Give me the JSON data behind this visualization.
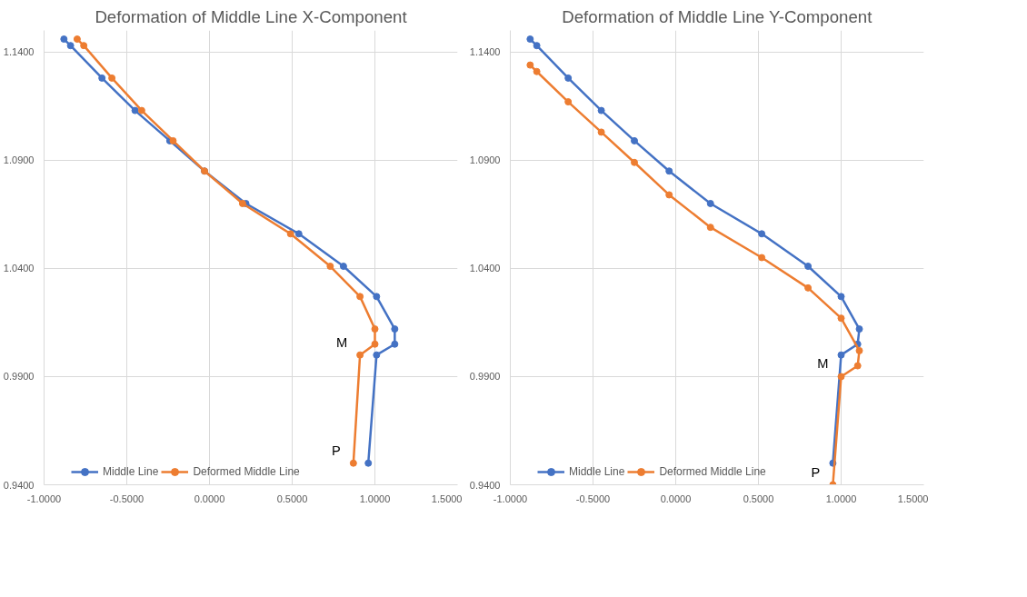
{
  "chart_data": [
    {
      "type": "line",
      "title": "Deformation of Middle Line X-Component",
      "xlim": [
        -1,
        1.5
      ],
      "ylim": [
        0.94,
        1.15
      ],
      "xticks": [
        {
          "value": -1,
          "label": "-1.0000"
        },
        {
          "value": -0.5,
          "label": "-0.5000"
        },
        {
          "value": 0,
          "label": "0.0000"
        },
        {
          "value": 0.5,
          "label": "0.5000"
        },
        {
          "value": 1,
          "label": "1.0000"
        },
        {
          "value": 1.5,
          "label": "1.5000"
        }
      ],
      "yticks": [
        {
          "value": 0.94,
          "label": "0.9400"
        },
        {
          "value": 0.99,
          "label": "0.9900"
        },
        {
          "value": 1.04,
          "label": "1.0400"
        },
        {
          "value": 1.09,
          "label": "1.0900"
        },
        {
          "value": 1.14,
          "label": "1.1400"
        }
      ],
      "grid": true,
      "legend": "bottom",
      "marker": "circle",
      "line_style": "solid",
      "series": [
        {
          "name": "Middle Line",
          "color": "#4472c4",
          "x": [
            -0.88,
            -0.84,
            -0.65,
            -0.45,
            -0.24,
            -0.03,
            0.22,
            0.54,
            0.81,
            1.01,
            1.12,
            1.12,
            1.01,
            0.96
          ],
          "values": [
            1.146,
            1.143,
            1.128,
            1.113,
            1.099,
            1.085,
            1.07,
            1.056,
            1.041,
            1.027,
            1.012,
            1.005,
            1.0,
            0.95
          ]
        },
        {
          "name": "Deformed Middle Line",
          "color": "#ed7d31",
          "x": [
            -0.8,
            -0.76,
            -0.59,
            -0.41,
            -0.22,
            -0.03,
            0.2,
            0.49,
            0.73,
            0.91,
            1.0,
            1.0,
            0.91,
            0.87
          ],
          "values": [
            1.146,
            1.143,
            1.128,
            1.113,
            1.099,
            1.085,
            1.07,
            1.056,
            1.041,
            1.027,
            1.012,
            1.005,
            1.0,
            0.95
          ]
        }
      ],
      "annotations": [
        {
          "text": "M",
          "x": 0.91,
          "y": 1.0
        },
        {
          "text": "P",
          "x": 0.87,
          "y": 0.95
        }
      ]
    },
    {
      "type": "line",
      "title": "Deformation of Middle Line Y-Component",
      "xlim": [
        -1,
        1.5
      ],
      "ylim": [
        0.94,
        1.15
      ],
      "xticks": [
        {
          "value": -1,
          "label": "-1.0000"
        },
        {
          "value": -0.5,
          "label": "-0.5000"
        },
        {
          "value": 0,
          "label": "0.0000"
        },
        {
          "value": 0.5,
          "label": "0.5000"
        },
        {
          "value": 1,
          "label": "1.0000"
        },
        {
          "value": 1.5,
          "label": "1.5000"
        }
      ],
      "yticks": [
        {
          "value": 0.94,
          "label": "0.9400"
        },
        {
          "value": 0.99,
          "label": "0.9900"
        },
        {
          "value": 1.04,
          "label": "1.0400"
        },
        {
          "value": 1.09,
          "label": "1.0900"
        },
        {
          "value": 1.14,
          "label": "1.1400"
        }
      ],
      "grid": true,
      "legend": "bottom",
      "marker": "circle",
      "line_style": "solid",
      "series": [
        {
          "name": "Middle Line",
          "color": "#4472c4",
          "x": [
            -0.88,
            -0.84,
            -0.65,
            -0.45,
            -0.25,
            -0.04,
            0.21,
            0.52,
            0.8,
            1.0,
            1.11,
            1.1,
            1.0,
            0.95
          ],
          "values": [
            1.146,
            1.143,
            1.128,
            1.113,
            1.099,
            1.085,
            1.07,
            1.056,
            1.041,
            1.027,
            1.012,
            1.005,
            1.0,
            0.95
          ]
        },
        {
          "name": "Deformed Middle Line",
          "color": "#ed7d31",
          "x": [
            -0.88,
            -0.84,
            -0.65,
            -0.45,
            -0.25,
            -0.04,
            0.21,
            0.52,
            0.8,
            1.0,
            1.11,
            1.1,
            1.0,
            0.95
          ],
          "values": [
            1.134,
            1.131,
            1.117,
            1.103,
            1.089,
            1.074,
            1.059,
            1.045,
            1.031,
            1.017,
            1.002,
            0.995,
            0.99,
            0.94
          ]
        }
      ],
      "annotations": [
        {
          "text": "M",
          "x": 1.0,
          "y": 0.99
        },
        {
          "text": "P",
          "x": 0.95,
          "y": 0.94
        }
      ]
    }
  ]
}
